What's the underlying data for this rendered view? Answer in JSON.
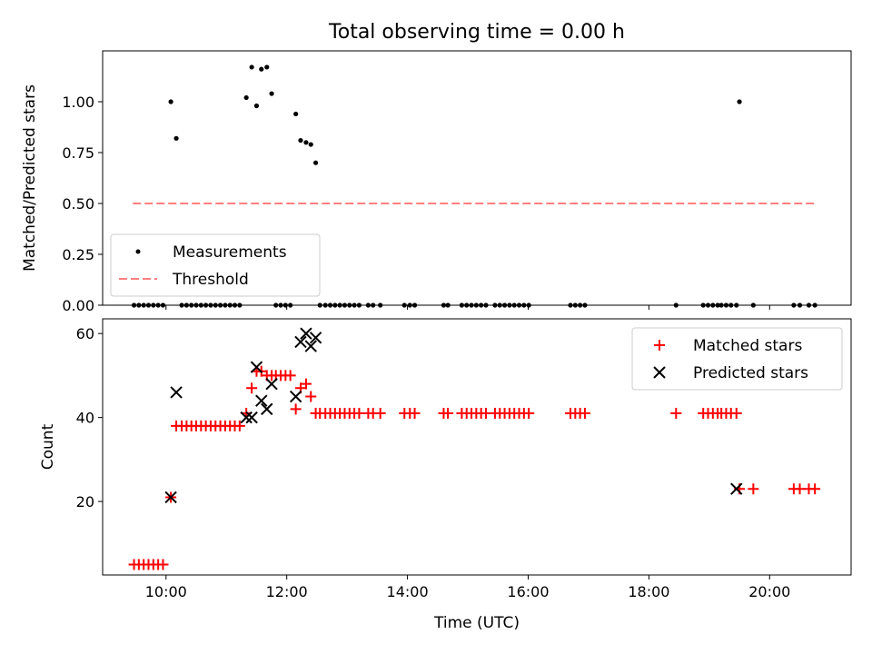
{
  "chart_data": [
    {
      "type": "scatter",
      "title": "Total observing time = 0.00 h",
      "ylabel": "Matched/Predicted stars",
      "xlabel": "",
      "xlim": [
        8.95,
        21.35
      ],
      "ylim": [
        0,
        1.25
      ],
      "yticks": [
        0.0,
        0.25,
        0.5,
        0.75,
        1.0
      ],
      "ytick_labels": [
        "0.00",
        "0.25",
        "0.50",
        "0.75",
        "1.00"
      ],
      "xticks": [
        10,
        12,
        14,
        16,
        18,
        20
      ],
      "xtick_labels_visible": false,
      "legend": {
        "location": "lower-left",
        "entries": [
          "Measurements",
          "Threshold"
        ]
      },
      "series": [
        {
          "name": "Measurements",
          "marker": "dot",
          "color": "#000000",
          "x": [
            9.47,
            9.55,
            9.63,
            9.71,
            9.79,
            9.87,
            9.95,
            10.08,
            10.17,
            10.26,
            10.34,
            10.42,
            10.5,
            10.58,
            10.66,
            10.74,
            10.82,
            10.9,
            10.98,
            11.06,
            11.14,
            11.22,
            11.33,
            11.42,
            11.5,
            11.58,
            11.67,
            11.75,
            11.82,
            11.9,
            11.98,
            12.06,
            12.15,
            12.23,
            12.32,
            12.4,
            12.48,
            12.55,
            12.64,
            12.72,
            12.8,
            12.88,
            12.96,
            13.04,
            13.12,
            13.2,
            13.35,
            13.43,
            13.55,
            13.95,
            14.04,
            14.12,
            14.6,
            14.67,
            14.9,
            14.98,
            15.06,
            15.14,
            15.22,
            15.3,
            15.45,
            15.53,
            15.61,
            15.69,
            15.77,
            15.85,
            15.93,
            16.01,
            16.7,
            16.78,
            16.86,
            16.94,
            18.45,
            18.9,
            18.98,
            19.06,
            19.14,
            19.2,
            19.28,
            19.36,
            19.45,
            19.5,
            19.73,
            20.4,
            20.5,
            20.65,
            20.75
          ],
          "y": [
            0,
            0,
            0,
            0,
            0,
            0,
            0,
            1.0,
            0.82,
            0,
            0,
            0,
            0,
            0,
            0,
            0,
            0,
            0,
            0,
            0,
            0,
            0,
            1.02,
            1.17,
            0.98,
            1.16,
            1.17,
            1.04,
            0,
            0,
            0,
            0,
            0.94,
            0.81,
            0.8,
            0.79,
            0.7,
            0,
            0,
            0,
            0,
            0,
            0,
            0,
            0,
            0,
            0,
            0,
            0,
            0,
            0,
            0,
            0,
            0,
            0,
            0,
            0,
            0,
            0,
            0,
            0,
            0,
            0,
            0,
            0,
            0,
            0,
            0,
            0,
            0,
            0,
            0,
            0,
            0,
            0,
            0,
            0,
            0,
            0,
            0,
            0,
            1.0,
            0,
            0,
            0,
            0,
            0
          ]
        },
        {
          "name": "Threshold",
          "line_style": "dashed",
          "color": "#ff7f7f",
          "x": [
            9.45,
            20.75
          ],
          "y": [
            0.5,
            0.5
          ]
        }
      ]
    },
    {
      "type": "scatter",
      "title": "",
      "ylabel": "Count",
      "xlabel": "Time (UTC)",
      "xlim": [
        8.95,
        21.35
      ],
      "ylim": [
        2.5,
        63.5
      ],
      "yticks": [
        20,
        40,
        60
      ],
      "ytick_labels": [
        "20",
        "40",
        "60"
      ],
      "xticks": [
        10,
        12,
        14,
        16,
        18,
        20
      ],
      "xtick_labels": [
        "10:00",
        "12:00",
        "14:00",
        "16:00",
        "18:00",
        "20:00"
      ],
      "legend": {
        "location": "top-right",
        "entries": [
          "Matched stars",
          "Predicted stars"
        ]
      },
      "series": [
        {
          "name": "Matched stars",
          "marker": "plus",
          "color": "#ff0000",
          "x": [
            9.47,
            9.55,
            9.63,
            9.71,
            9.79,
            9.87,
            9.95,
            10.08,
            10.17,
            10.26,
            10.34,
            10.42,
            10.5,
            10.58,
            10.66,
            10.74,
            10.82,
            10.9,
            10.98,
            11.06,
            11.14,
            11.22,
            11.33,
            11.42,
            11.5,
            11.58,
            11.67,
            11.75,
            11.82,
            11.9,
            11.98,
            12.06,
            12.15,
            12.23,
            12.32,
            12.4,
            12.48,
            12.55,
            12.64,
            12.72,
            12.8,
            12.88,
            12.96,
            13.04,
            13.12,
            13.2,
            13.35,
            13.43,
            13.55,
            13.95,
            14.04,
            14.12,
            14.6,
            14.67,
            14.9,
            14.98,
            15.06,
            15.14,
            15.22,
            15.3,
            15.45,
            15.53,
            15.61,
            15.69,
            15.77,
            15.85,
            15.93,
            16.01,
            16.7,
            16.78,
            16.86,
            16.94,
            18.45,
            18.9,
            18.98,
            19.06,
            19.14,
            19.2,
            19.28,
            19.36,
            19.45,
            19.5,
            19.73,
            20.4,
            20.5,
            20.65,
            20.75
          ],
          "y": [
            5,
            5,
            5,
            5,
            5,
            5,
            5,
            21,
            38,
            38,
            38,
            38,
            38,
            38,
            38,
            38,
            38,
            38,
            38,
            38,
            38,
            38,
            41,
            47,
            51,
            51,
            50,
            50,
            50,
            50,
            50,
            50,
            42,
            47,
            48,
            45,
            41,
            41,
            41,
            41,
            41,
            41,
            41,
            41,
            41,
            41,
            41,
            41,
            41,
            41,
            41,
            41,
            41,
            41,
            41,
            41,
            41,
            41,
            41,
            41,
            41,
            41,
            41,
            41,
            41,
            41,
            41,
            41,
            41,
            41,
            41,
            41,
            41,
            41,
            41,
            41,
            41,
            41,
            41,
            41,
            41,
            23,
            23,
            23,
            23,
            23,
            23
          ]
        },
        {
          "name": "Predicted stars",
          "marker": "x",
          "color": "#000000",
          "x": [
            10.08,
            10.17,
            11.33,
            11.42,
            11.5,
            11.58,
            11.67,
            11.75,
            12.15,
            12.23,
            12.32,
            12.4,
            12.48,
            19.45
          ],
          "y": [
            21,
            46,
            40,
            40,
            52,
            44,
            42,
            48,
            45,
            58,
            60,
            57,
            59,
            23
          ]
        }
      ]
    }
  ]
}
